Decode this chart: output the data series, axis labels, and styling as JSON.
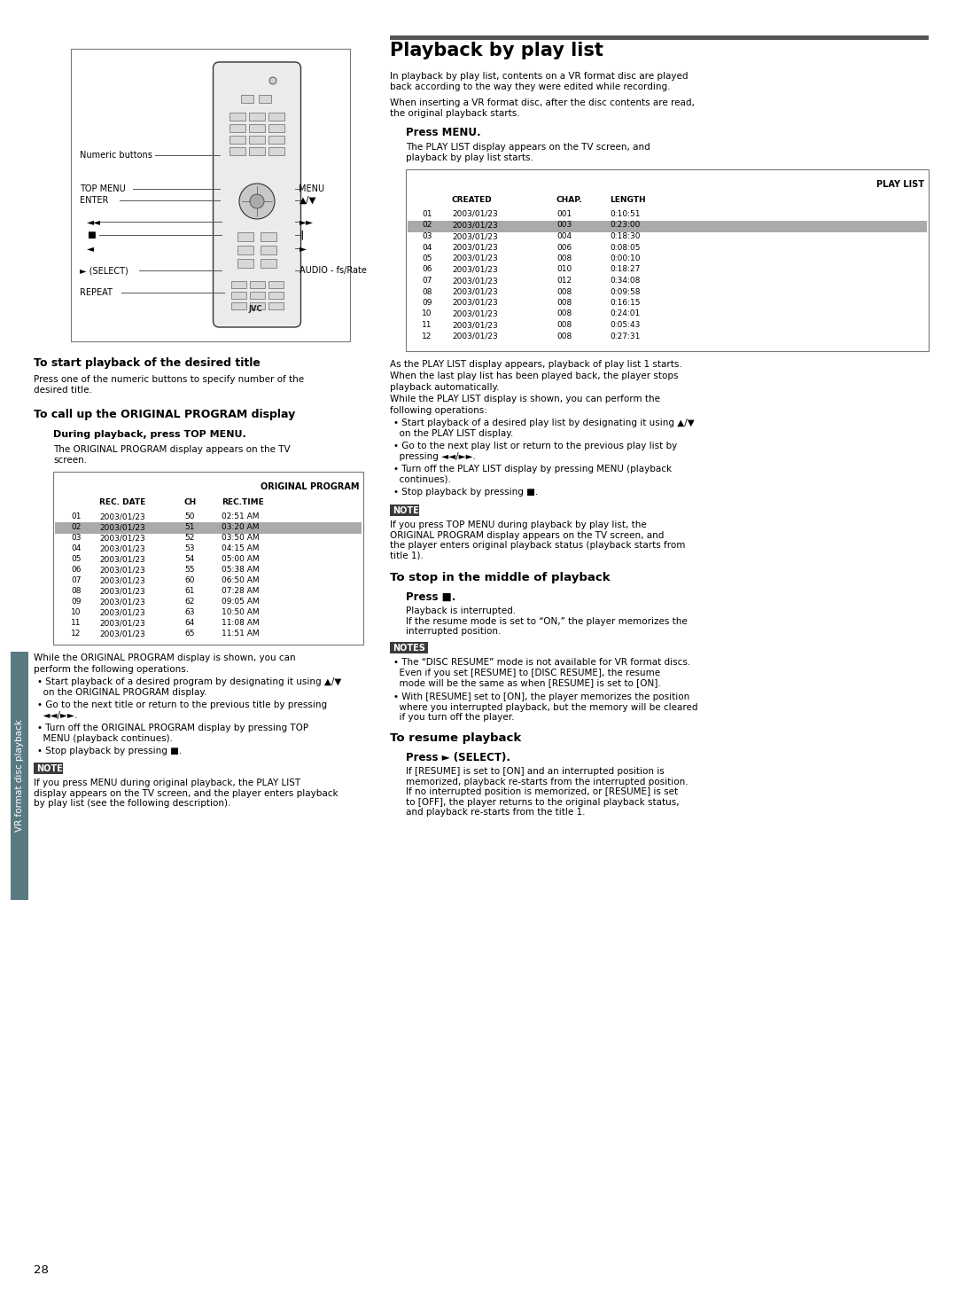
{
  "page_number": "28",
  "background_color": "#ffffff",
  "sidebar_color": "#5a7a82",
  "sidebar_text": "VR format disc playback",
  "title_bar_color": "#555555",
  "main_title": "Playback by play list",
  "intro_text1": "In playback by play list, contents on a VR format disc are played\nback according to the way they were edited while recording.",
  "intro_text2": "When inserting a VR format disc, after the disc contents are read,\nthe original playback starts.",
  "press_menu_heading": "Press MENU.",
  "press_menu_text": "The PLAY LIST display appears on the TV screen, and\nplayback by play list starts.",
  "playlist_table_header": "PLAY LIST",
  "playlist_rows": [
    [
      "01",
      "2003/01/23",
      "001",
      "0:10:51"
    ],
    [
      "02",
      "2003/01/23",
      "003",
      "0:23:00"
    ],
    [
      "03",
      "2003/01/23",
      "004",
      "0:18:30"
    ],
    [
      "04",
      "2003/01/23",
      "006",
      "0:08:05"
    ],
    [
      "05",
      "2003/01/23",
      "008",
      "0:00:10"
    ],
    [
      "06",
      "2003/01/23",
      "010",
      "0:18:27"
    ],
    [
      "07",
      "2003/01/23",
      "012",
      "0:34:08"
    ],
    [
      "08",
      "2003/01/23",
      "008",
      "0:09:58"
    ],
    [
      "09",
      "2003/01/23",
      "008",
      "0:16:15"
    ],
    [
      "10",
      "2003/01/23",
      "008",
      "0:24:01"
    ],
    [
      "11",
      "2003/01/23",
      "008",
      "0:05:43"
    ],
    [
      "12",
      "2003/01/23",
      "008",
      "0:27:31"
    ]
  ],
  "playlist_highlight_row": 1,
  "playlist_after_text1": "As the PLAY LIST display appears, playback of play list 1 starts.",
  "playlist_after_text2": "When the last play list has been played back, the player stops",
  "playlist_after_text3": "playback automatically.",
  "playlist_after_text4": "While the PLAY LIST display is shown, you can perform the",
  "playlist_after_text5": "following operations:",
  "playlist_bullets": [
    "Start playback of a desired play list by designating it using ▲/▼\n  on the PLAY LIST display.",
    "Go to the next play list or return to the previous play list by\n  pressing ◄◄/►►.",
    "Turn off the PLAY LIST display by pressing MENU (playback\n  continues).",
    "Stop playback by pressing ■."
  ],
  "note_heading": "NOTE",
  "note_right_text": "If you press TOP MENU during playback by play list, the\nORIGINAL PROGRAM display appears on the TV screen, and\nthe player enters original playback status (playback starts from\ntitle 1).",
  "stop_heading": "To stop in the middle of playback",
  "stop_subheading": "Press ■.",
  "stop_text": "Playback is interrupted.\nIf the resume mode is set to “ON,” the player memorizes the\ninterrupted position.",
  "notes2_heading": "NOTES",
  "notes2_bullets": [
    "The “DISC RESUME” mode is not available for VR format discs.\n  Even if you set [RESUME] to [DISC RESUME], the resume\n  mode will be the same as when [RESUME] is set to [ON].",
    "With [RESUME] set to [ON], the player memorizes the position\n  where you interrupted playback, but the memory will be cleared\n  if you turn off the player."
  ],
  "resume_heading": "To resume playback",
  "resume_subheading": "Press ► (SELECT).",
  "resume_text": "If [RESUME] is set to [ON] and an interrupted position is\nmemorized, playback re-starts from the interrupted position.\nIf no interrupted position is memorized, or [RESUME] is set\nto [OFF], the player returns to the original playback status,\nand playback re-starts from the title 1.",
  "left_title1": "To start playback of the desired title",
  "left_text1": "Press one of the numeric buttons to specify number of the\ndesired title.",
  "left_title2": "To call up the ORIGINAL PROGRAM display",
  "left_sub2": "During playback, press TOP MENU.",
  "left_subtext2": "The ORIGINAL PROGRAM display appears on the TV\nscreen.",
  "orig_table_header": "ORIGINAL PROGRAM",
  "orig_rows": [
    [
      "01",
      "2003/01/23",
      "50",
      "02:51 AM"
    ],
    [
      "02",
      "2003/01/23",
      "51",
      "03:20 AM"
    ],
    [
      "03",
      "2003/01/23",
      "52",
      "03:50 AM"
    ],
    [
      "04",
      "2003/01/23",
      "53",
      "04:15 AM"
    ],
    [
      "05",
      "2003/01/23",
      "54",
      "05:00 AM"
    ],
    [
      "06",
      "2003/01/23",
      "55",
      "05:38 AM"
    ],
    [
      "07",
      "2003/01/23",
      "60",
      "06:50 AM"
    ],
    [
      "08",
      "2003/01/23",
      "61",
      "07:28 AM"
    ],
    [
      "09",
      "2003/01/23",
      "62",
      "09:05 AM"
    ],
    [
      "10",
      "2003/01/23",
      "63",
      "10:50 AM"
    ],
    [
      "11",
      "2003/01/23",
      "64",
      "11:08 AM"
    ],
    [
      "12",
      "2003/01/23",
      "65",
      "11:51 AM"
    ]
  ],
  "orig_highlight_row": 1,
  "orig_after_bullets": [
    "Start playback of a desired program by designating it using ▲/▼\n  on the ORIGINAL PROGRAM display.",
    "Go to the next title or return to the previous title by pressing\n  ◄◄/►►.",
    "Turn off the ORIGINAL PROGRAM display by pressing TOP\n  MENU (playback continues).",
    "Stop playback by pressing ■."
  ],
  "orig_note_text": "If you press MENU during original playback, the PLAY LIST\ndisplay appears on the TV screen, and the player enters playback\nby play list (see the following description).",
  "remote_labels_left": [
    "Numeric buttons",
    "TOP MENU",
    "ENTER",
    "◄◄",
    "■",
    "◄",
    "► (SELECT)",
    "REPEAT"
  ],
  "remote_labels_right": [
    "MENU",
    "▲/▼",
    "►►",
    "‖",
    "►",
    "AUDIO - fs/Rate"
  ]
}
